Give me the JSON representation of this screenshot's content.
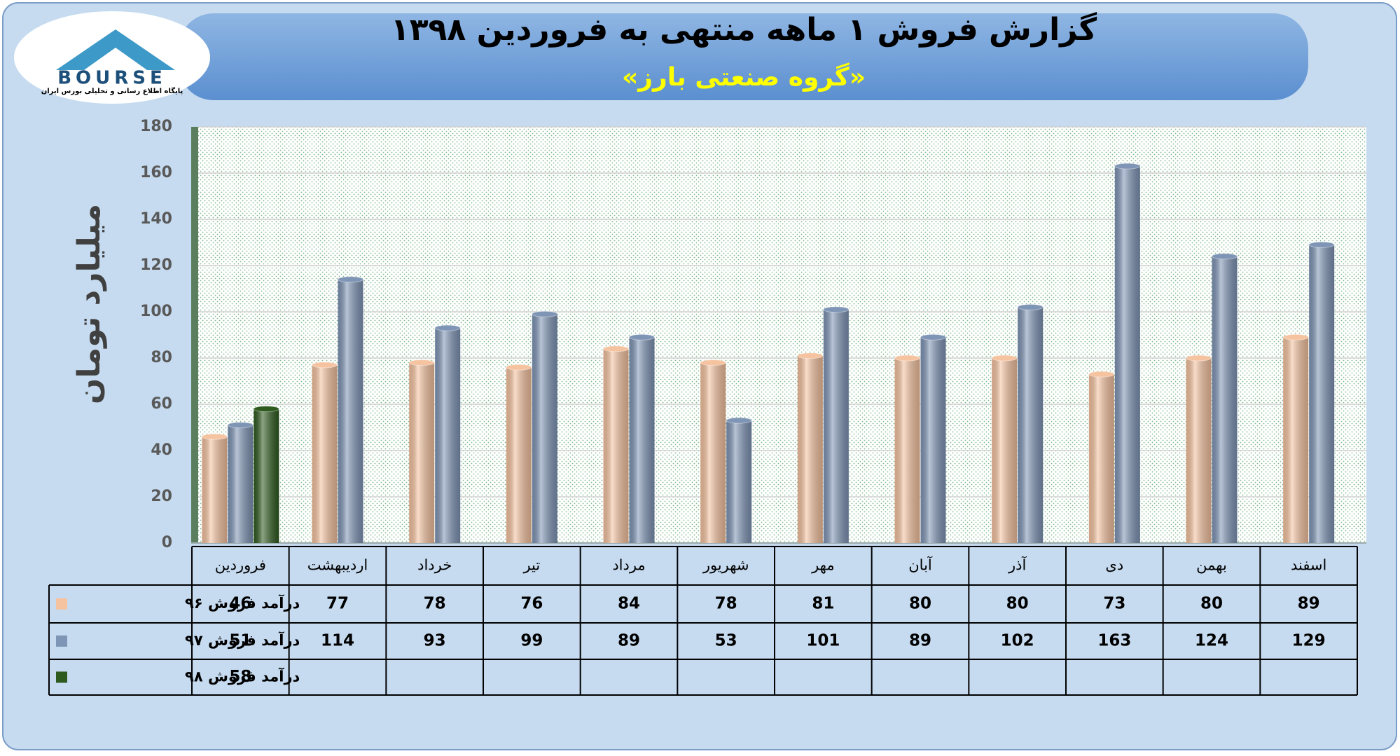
{
  "logo": {
    "text": "BOURSE",
    "caption": "پایگاه اطلاع رسانی و تحلیلی بورس ایران"
  },
  "chart_data": {
    "type": "bar",
    "title": "گزارش فروش ۱ ماهه منتهی به فروردین ۱۳۹۸",
    "subtitle": "«گروه صنعتی بارز»",
    "y_label": "میلیارد تومان",
    "categories": [
      "فروردین",
      "اردیبهشت",
      "خرداد",
      "تیر",
      "مرداد",
      "شهریور",
      "مهر",
      "آبان",
      "آذر",
      "دی",
      "بهمن",
      "اسفند"
    ],
    "series": [
      {
        "name": "درآمد فروش ۹۶",
        "color": "#f6c3a0",
        "values": [
          46,
          77,
          78,
          76,
          84,
          78,
          81,
          80,
          80,
          73,
          80,
          89
        ]
      },
      {
        "name": "درآمد فروش ۹۷",
        "color": "#7f95b6",
        "values": [
          51,
          114,
          93,
          99,
          89,
          53,
          101,
          89,
          102,
          163,
          124,
          129
        ]
      },
      {
        "name": "درآمد فروش ۹۸",
        "color": "#2e5a1e",
        "values": [
          58,
          null,
          null,
          null,
          null,
          null,
          null,
          null,
          null,
          null,
          null,
          null
        ]
      }
    ],
    "ylim": [
      0,
      180
    ],
    "yticks": [
      0,
      20,
      40,
      60,
      80,
      100,
      120,
      140,
      160,
      180
    ],
    "grid": true
  }
}
